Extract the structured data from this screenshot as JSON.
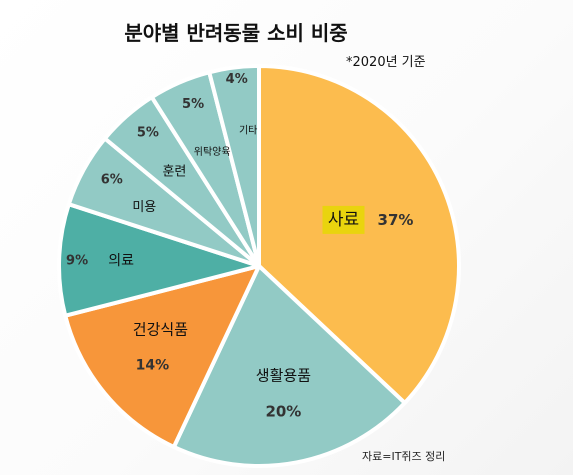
{
  "chart_data": {
    "type": "pie",
    "title": "분야별 반려동물 소비 비중",
    "note": "*2020년 기준",
    "source": "자료=IT쥐즈 정리",
    "slices": [
      {
        "label": "사료",
        "value": 37,
        "display": "37%",
        "color": "#FCBC4E"
      },
      {
        "label": "생활용품",
        "value": 20,
        "display": "20%",
        "color": "#92CAC5"
      },
      {
        "label": "건강식품",
        "value": 14,
        "display": "14%",
        "color": "#F7963A"
      },
      {
        "label": "의료",
        "value": 9,
        "display": "9%",
        "color": "#4EAFA5"
      },
      {
        "label": "미용",
        "value": 6,
        "display": "6%",
        "color": "#92CAC5"
      },
      {
        "label": "훈련",
        "value": 5,
        "display": "5%",
        "color": "#92CAC5"
      },
      {
        "label": "위탁양육",
        "value": 5,
        "display": "5%",
        "color": "#92CAC5"
      },
      {
        "label": "기타",
        "value": 4,
        "display": "4%",
        "color": "#92CAC5"
      }
    ],
    "highlight_color": "#E9D40E"
  }
}
